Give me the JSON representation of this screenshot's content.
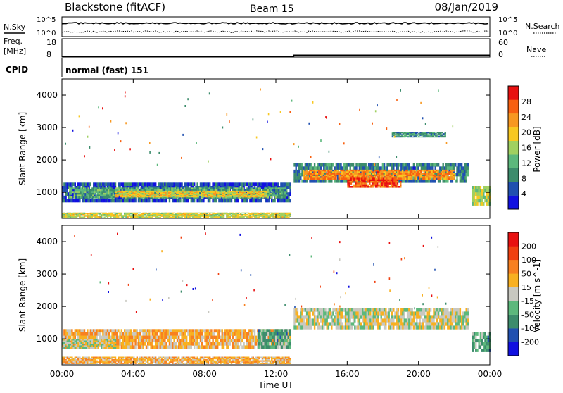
{
  "header": {
    "station": "Blackstone (fitACF)",
    "beam": "Beam 15",
    "date": "08/Jan/2019"
  },
  "noise_panel": {
    "left_label": "N.Sky",
    "right_label": "N.Search",
    "tick_top": "10^5",
    "tick_bottom": "10^0"
  },
  "freq_panel": {
    "left_label_1": "Freq.",
    "left_label_2": "[MHz]",
    "right_label": "Nave",
    "left_ticks": [
      "18",
      "8"
    ],
    "right_ticks": [
      "60",
      "0"
    ],
    "freq_levels": [
      {
        "t": 0,
        "v": 8.3
      },
      {
        "t": 13.0,
        "v": 8.3
      },
      {
        "t": 13.0,
        "v": 9.0
      },
      {
        "t": 24,
        "v": 9.0
      }
    ]
  },
  "cpid_panel": {
    "label": "CPID",
    "mode_text": "normal (fast) 151"
  },
  "x_axis": {
    "label": "Time UT",
    "ticks": [
      "00:00",
      "04:00",
      "08:00",
      "12:00",
      "16:00",
      "20:00",
      "00:00"
    ],
    "tick_hours": [
      0,
      4,
      8,
      12,
      16,
      20,
      24
    ]
  },
  "colors": {
    "power": [
      "#1010e0",
      "#2050b0",
      "#3c8c6c",
      "#5cb87c",
      "#a0d060",
      "#f8c820",
      "#f89820",
      "#f86010",
      "#e81010"
    ],
    "velocity": [
      "#1010e0",
      "#2050b0",
      "#3c8c6c",
      "#5cb87c",
      "#c8c8c0",
      "#f8b020",
      "#f88020",
      "#f04010",
      "#e81010"
    ],
    "gray": "#c8c8c0"
  },
  "chart_data": [
    {
      "type": "heatmap",
      "name": "power",
      "ylabel": "Slant Range [km]",
      "yticks": [
        1000,
        2000,
        3000,
        4000
      ],
      "ylim": [
        200,
        4500
      ],
      "xlim": [
        0,
        24
      ],
      "colorbar_label": "Power [dB]",
      "colorbar_ticks": [
        "28",
        "24",
        "20",
        "16",
        "12",
        "8",
        "4"
      ],
      "regions": [
        {
          "t0": 0,
          "t1": 12.8,
          "r0": 700,
          "r1": 1300,
          "level": 0.15
        },
        {
          "t0": 0.4,
          "t1": 12.6,
          "r0": 820,
          "r1": 1150,
          "level": 0.35
        },
        {
          "t0": 3.0,
          "t1": 11.5,
          "r0": 850,
          "r1": 1050,
          "level": 0.6
        },
        {
          "t0": 0,
          "t1": 12.8,
          "r0": 230,
          "r1": 380,
          "level": 0.55
        },
        {
          "t0": 13.0,
          "t1": 22.8,
          "r0": 1300,
          "r1": 1900,
          "level": 0.25
        },
        {
          "t0": 13.5,
          "t1": 22.0,
          "r0": 1400,
          "r1": 1700,
          "level": 0.75
        },
        {
          "t0": 16.0,
          "t1": 19.0,
          "r0": 1150,
          "r1": 1450,
          "level": 0.85
        },
        {
          "t0": 23.0,
          "t1": 24,
          "r0": 600,
          "r1": 1200,
          "level": 0.5
        },
        {
          "t0": 18.5,
          "t1": 21.5,
          "r0": 2700,
          "r1": 2850,
          "level": 0.3
        }
      ]
    },
    {
      "type": "heatmap",
      "name": "velocity",
      "ylabel": "Slant Range [km]",
      "yticks": [
        1000,
        2000,
        3000,
        4000
      ],
      "ylim": [
        200,
        4500
      ],
      "xlim": [
        0,
        24
      ],
      "colorbar_label": "Velocity [m s^-1]",
      "colorbar_ticks": [
        "200",
        "100",
        "50",
        "15",
        "-15",
        "-50",
        "-100",
        "-200"
      ],
      "regions": [
        {
          "t0": 0,
          "t1": 12.8,
          "r0": 700,
          "r1": 1300,
          "level": 0.62
        },
        {
          "t0": 0,
          "t1": 3.0,
          "r0": 700,
          "r1": 1000,
          "level": 0.5
        },
        {
          "t0": 0,
          "t1": 12.8,
          "r0": 230,
          "r1": 450,
          "level": 0.62
        },
        {
          "t0": 11.0,
          "t1": 12.8,
          "r0": 700,
          "r1": 1300,
          "level": 0.35
        },
        {
          "t0": 13.0,
          "t1": 22.8,
          "r0": 1300,
          "r1": 1950,
          "level": 0.5
        },
        {
          "t0": 23.0,
          "t1": 24,
          "r0": 600,
          "r1": 1200,
          "level": 0.35
        }
      ]
    }
  ]
}
